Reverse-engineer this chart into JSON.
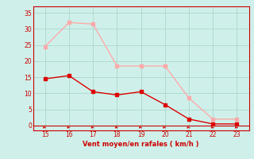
{
  "x_wind": [
    15,
    16,
    17,
    18,
    19,
    20,
    21,
    22,
    23
  ],
  "y_avg": [
    14.5,
    15.5,
    10.5,
    9.5,
    10.5,
    6.5,
    2.0,
    0.5,
    0.5
  ],
  "y_gust": [
    24.5,
    32.0,
    31.5,
    18.5,
    18.5,
    18.5,
    8.5,
    2.0,
    2.0
  ],
  "color_avg": "#dd0000",
  "color_gust": "#ffaaaa",
  "bg_color": "#cff0ea",
  "grid_color": "#aad8cc",
  "axis_color": "#cc0000",
  "tick_color": "#cc0000",
  "xlabel": "Vent moyen/en rafales ( km/h )",
  "xlabel_color": "#cc0000",
  "xlim": [
    14.5,
    23.5
  ],
  "ylim": [
    -1.5,
    37
  ],
  "yticks": [
    0,
    5,
    10,
    15,
    20,
    25,
    30,
    35
  ],
  "xticks": [
    15,
    16,
    17,
    18,
    19,
    20,
    21,
    22,
    23
  ],
  "marker": "s",
  "markersize": 2.5,
  "linewidth": 1.0
}
